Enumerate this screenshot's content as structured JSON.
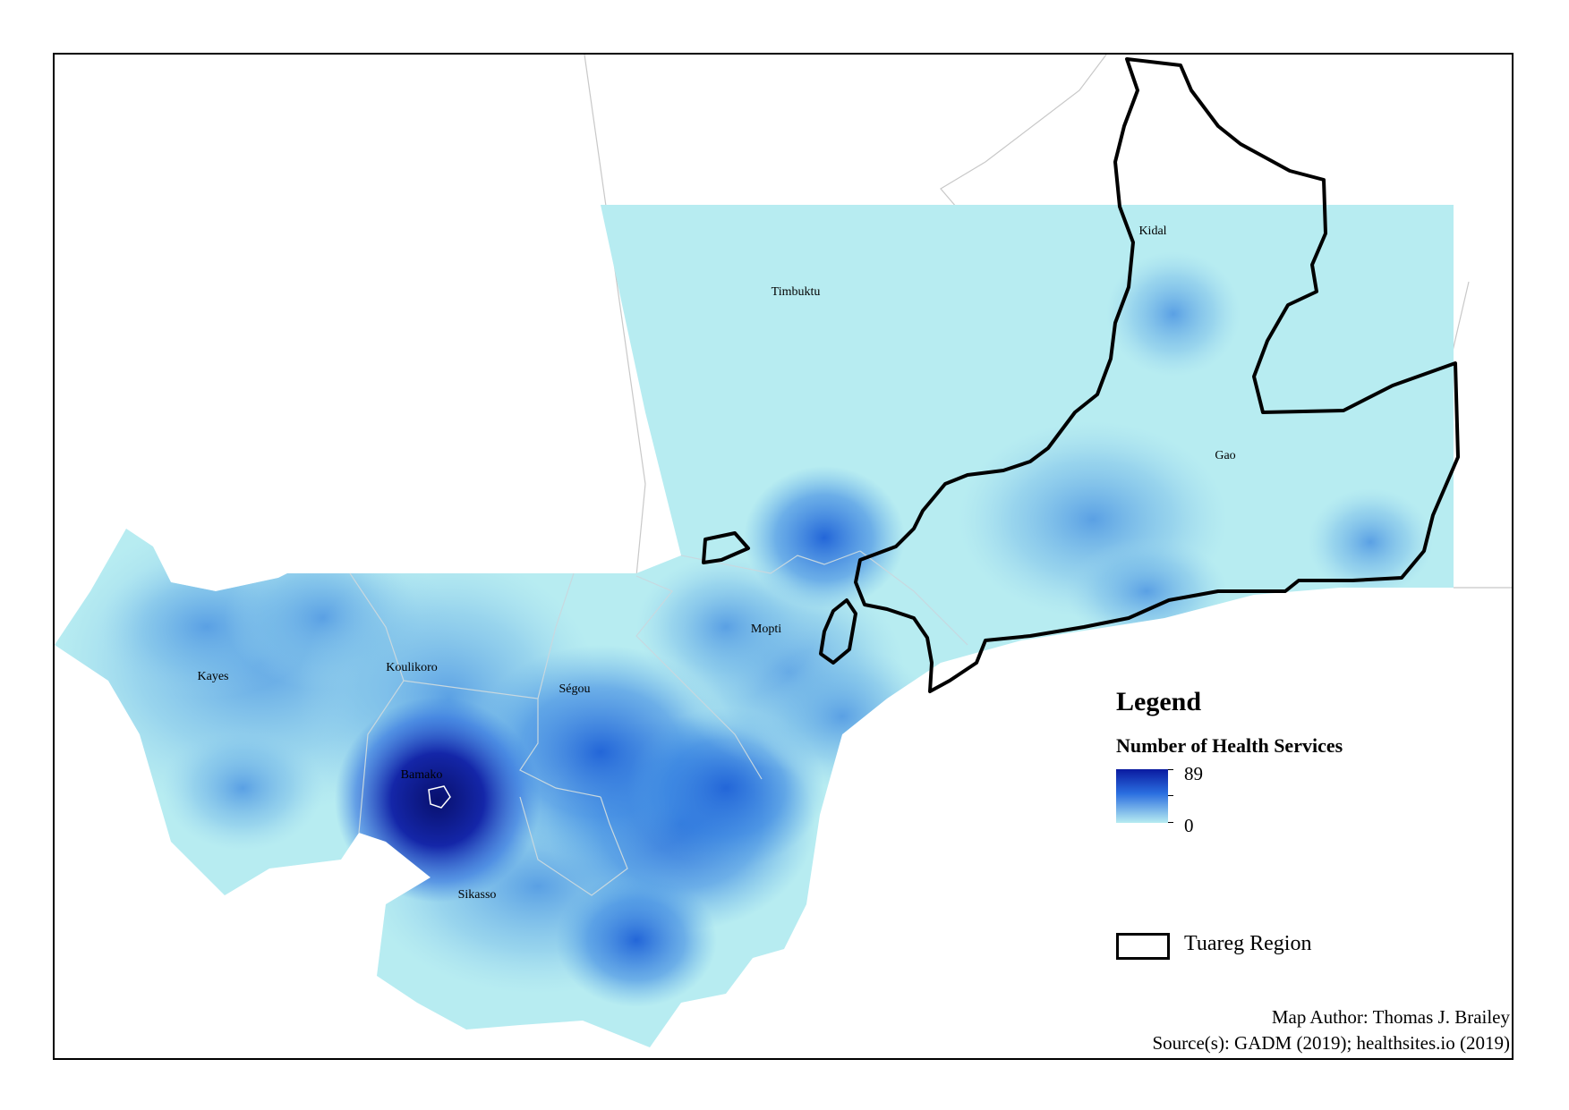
{
  "map": {
    "regions": [
      {
        "id": "kayes",
        "label": "Kayes"
      },
      {
        "id": "koulikoro",
        "label": "Koulikoro"
      },
      {
        "id": "bamako",
        "label": "Bamako"
      },
      {
        "id": "segou",
        "label": "Ségou"
      },
      {
        "id": "sikasso",
        "label": "Sikasso"
      },
      {
        "id": "mopti",
        "label": "Mopti"
      },
      {
        "id": "timbuktu",
        "label": "Timbuktu"
      },
      {
        "id": "kidal",
        "label": "Kidal"
      },
      {
        "id": "gao",
        "label": "Gao"
      }
    ],
    "colors": {
      "low": "#b7ecf1",
      "mid": "#2a6ee0",
      "high": "#0a1aa0",
      "boundary": "#c8c8c8",
      "tuareg_outline": "#000000"
    }
  },
  "legend": {
    "title": "Legend",
    "subtitle": "Number of Health Services",
    "max_value": "89",
    "min_value": "0",
    "tuareg_label": "Tuareg Region"
  },
  "credits": {
    "author": "Map Author: Thomas J. Brailey",
    "sources": "Source(s): GADM (2019); healthsites.io (2019)"
  }
}
